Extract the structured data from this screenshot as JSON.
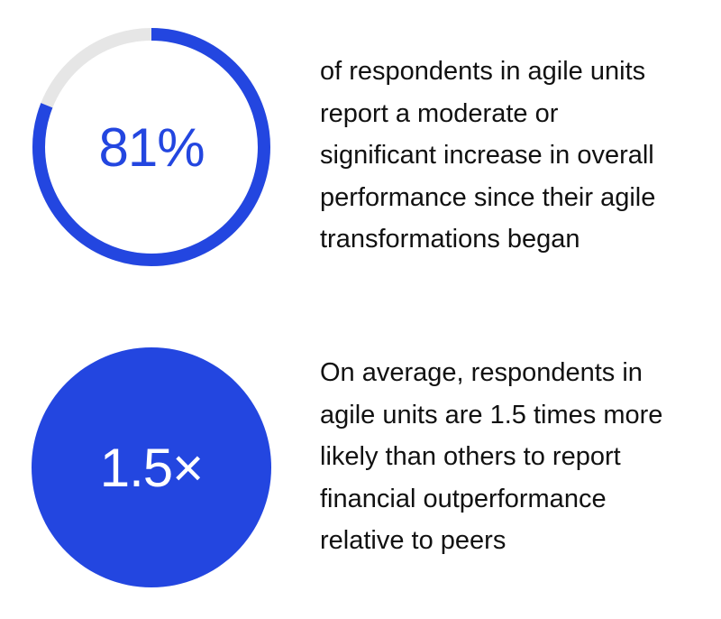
{
  "colors": {
    "accent": "#2346e0",
    "track": "#e6e6e6",
    "text": "#111111",
    "background": "#ffffff"
  },
  "stats": [
    {
      "value": "81%",
      "progress_fraction": 0.81,
      "lines": [
        "of respondents in agile units",
        "report a moderate or",
        "significant increase in overall",
        "performance since their agile",
        "transformations began"
      ]
    },
    {
      "value": "1.5×",
      "lines": [
        "On average, respondents in",
        "agile units are 1.5 times more",
        "likely than others to report",
        "financial outperformance",
        "relative to peers"
      ]
    }
  ]
}
